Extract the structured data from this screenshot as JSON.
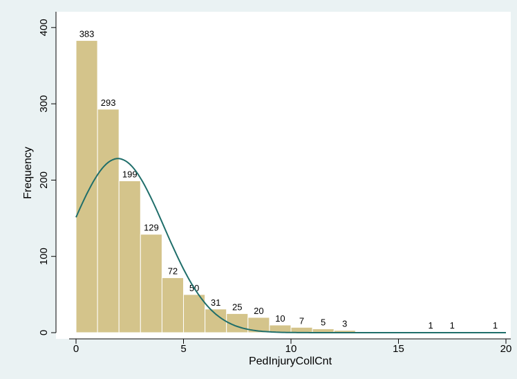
{
  "chart_data": {
    "type": "bar",
    "xlabel": "PedInjuryCollCnt",
    "ylabel": "Frequency",
    "xlim": [
      -1,
      20.5
    ],
    "ylim": [
      0,
      420
    ],
    "x_ticks": [
      0,
      5,
      10,
      15,
      20
    ],
    "y_ticks": [
      0,
      100,
      200,
      300,
      400
    ],
    "bin_width": 1,
    "bins": [
      {
        "start": 0,
        "count": 383,
        "label": "383"
      },
      {
        "start": 1,
        "count": 293,
        "label": "293"
      },
      {
        "start": 2,
        "count": 199,
        "label": "199"
      },
      {
        "start": 3,
        "count": 129,
        "label": "129"
      },
      {
        "start": 4,
        "count": 72,
        "label": "72"
      },
      {
        "start": 5,
        "count": 50,
        "label": "50"
      },
      {
        "start": 6,
        "count": 31,
        "label": "31"
      },
      {
        "start": 7,
        "count": 25,
        "label": "25"
      },
      {
        "start": 8,
        "count": 20,
        "label": "20"
      },
      {
        "start": 9,
        "count": 10,
        "label": "10"
      },
      {
        "start": 10,
        "count": 7,
        "label": "7"
      },
      {
        "start": 11,
        "count": 5,
        "label": "5"
      },
      {
        "start": 12,
        "count": 3,
        "label": "3"
      },
      {
        "start": 16,
        "count": 1,
        "label": "1"
      },
      {
        "start": 17,
        "count": 1,
        "label": "1"
      },
      {
        "start": 19,
        "count": 1,
        "label": "1"
      }
    ],
    "normal_curve": {
      "mean": 1.95,
      "sd": 2.15,
      "n": 1230
    },
    "grid": false,
    "legend": "none"
  },
  "colors": {
    "bar_fill": "#d4c48b",
    "bar_stroke": "#ffffff",
    "curve": "#1f6e6a",
    "plot_bg": "#ffffff",
    "outer_bg": "#eaf2f3"
  }
}
